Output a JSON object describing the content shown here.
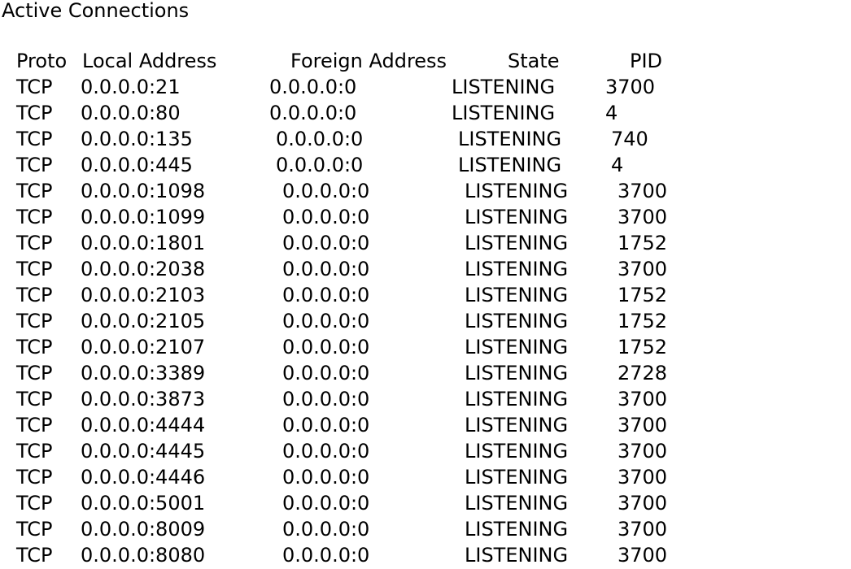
{
  "title": "Active Connections",
  "headers": {
    "proto": "Proto",
    "local": "Local Address",
    "foreign": "Foreign Address",
    "state": "State",
    "pid": "PID"
  },
  "rows": [
    {
      "proto": "TCP",
      "local": "0.0.0.0:21",
      "foreign": "0.0.0.0:0",
      "state": "LISTENING",
      "pid": "3700"
    },
    {
      "proto": "TCP",
      "local": "0.0.0.0:80",
      "foreign": "0.0.0.0:0",
      "state": "LISTENING",
      "pid": "4"
    },
    {
      "proto": "TCP",
      "local": "0.0.0.0:135",
      "foreign": "0.0.0.0:0",
      "state": "LISTENING",
      "pid": "740"
    },
    {
      "proto": "TCP",
      "local": "0.0.0.0:445",
      "foreign": "0.0.0.0:0",
      "state": "LISTENING",
      "pid": "4"
    },
    {
      "proto": "TCP",
      "local": "0.0.0.0:1098",
      "foreign": "0.0.0.0:0",
      "state": "LISTENING",
      "pid": "3700"
    },
    {
      "proto": "TCP",
      "local": "0.0.0.0:1099",
      "foreign": "0.0.0.0:0",
      "state": "LISTENING",
      "pid": "3700"
    },
    {
      "proto": "TCP",
      "local": "0.0.0.0:1801",
      "foreign": "0.0.0.0:0",
      "state": "LISTENING",
      "pid": "1752"
    },
    {
      "proto": "TCP",
      "local": "0.0.0.0:2038",
      "foreign": "0.0.0.0:0",
      "state": "LISTENING",
      "pid": "3700"
    },
    {
      "proto": "TCP",
      "local": "0.0.0.0:2103",
      "foreign": "0.0.0.0:0",
      "state": "LISTENING",
      "pid": "1752"
    },
    {
      "proto": "TCP",
      "local": "0.0.0.0:2105",
      "foreign": "0.0.0.0:0",
      "state": "LISTENING",
      "pid": "1752"
    },
    {
      "proto": "TCP",
      "local": "0.0.0.0:2107",
      "foreign": "0.0.0.0:0",
      "state": "LISTENING",
      "pid": "1752"
    },
    {
      "proto": "TCP",
      "local": "0.0.0.0:3389",
      "foreign": "0.0.0.0:0",
      "state": "LISTENING",
      "pid": "2728"
    },
    {
      "proto": "TCP",
      "local": "0.0.0.0:3873",
      "foreign": "0.0.0.0:0",
      "state": "LISTENING",
      "pid": "3700"
    },
    {
      "proto": "TCP",
      "local": "0.0.0.0:4444",
      "foreign": "0.0.0.0:0",
      "state": "LISTENING",
      "pid": "3700"
    },
    {
      "proto": "TCP",
      "local": "0.0.0.0:4445",
      "foreign": "0.0.0.0:0",
      "state": "LISTENING",
      "pid": "3700"
    },
    {
      "proto": "TCP",
      "local": "0.0.0.0:4446",
      "foreign": "0.0.0.0:0",
      "state": "LISTENING",
      "pid": "3700"
    },
    {
      "proto": "TCP",
      "local": "0.0.0.0:5001",
      "foreign": "0.0.0.0:0",
      "state": "LISTENING",
      "pid": "3700"
    },
    {
      "proto": "TCP",
      "local": "0.0.0.0:8009",
      "foreign": "0.0.0.0:0",
      "state": "LISTENING",
      "pid": "3700"
    },
    {
      "proto": "TCP",
      "local": "0.0.0.0:8080",
      "foreign": "0.0.0.0:0",
      "state": "LISTENING",
      "pid": "3700"
    }
  ]
}
